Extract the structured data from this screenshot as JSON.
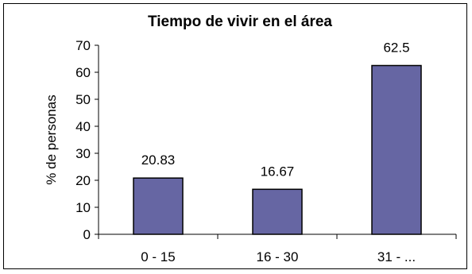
{
  "chart_data": {
    "type": "bar",
    "title": "Tiempo de vivir en el área",
    "xlabel": "",
    "ylabel": "% de personas",
    "categories": [
      "0 - 15",
      "16 - 30",
      "31 - ..."
    ],
    "values": [
      20.83,
      16.67,
      62.5
    ],
    "data_labels": [
      "20.83",
      "16.67",
      "62.5"
    ],
    "ylim": [
      0,
      70
    ],
    "yticks": [
      0,
      10,
      20,
      30,
      40,
      50,
      60,
      70
    ],
    "grid": false,
    "legend": "none",
    "bar_color": "#6666a3",
    "bar_edge_color": "#000000"
  }
}
